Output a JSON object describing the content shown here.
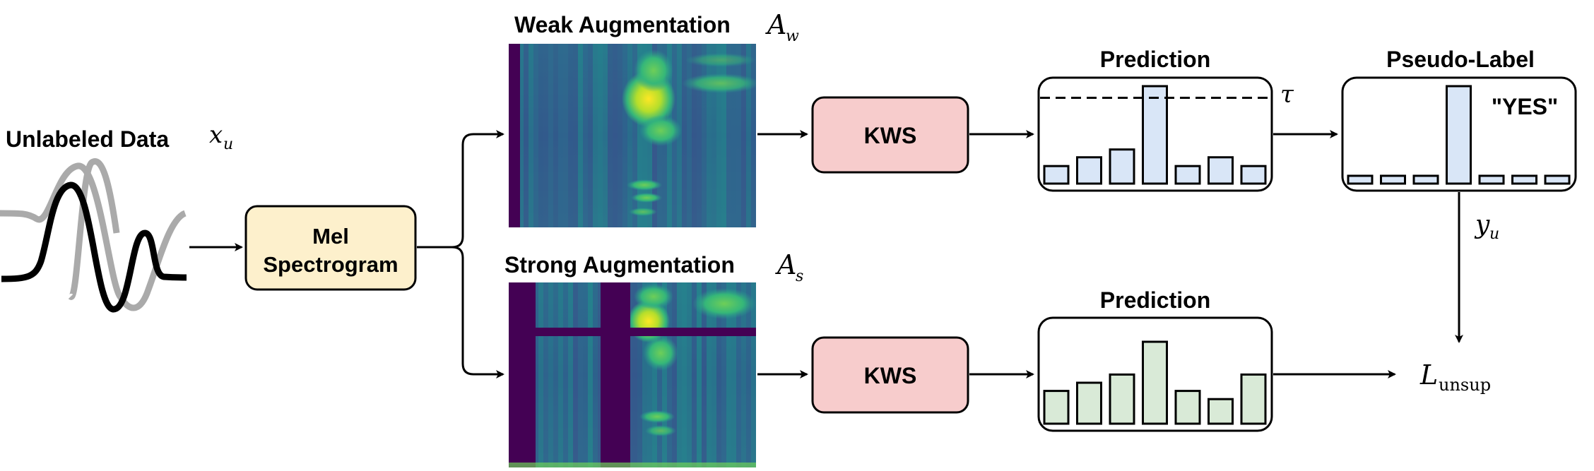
{
  "input": {
    "title": "Unlabeled Data",
    "symbol": "x",
    "symbol_sub": "u",
    "wave_colors": {
      "front": "#000000",
      "back": "#aaaaaa"
    }
  },
  "mel": {
    "label_line1": "Mel",
    "label_line2": "Spectrogram",
    "fill": "#fdf0cc"
  },
  "weak": {
    "title": "Weak Augmentation",
    "symbol": "A",
    "symbol_sub": "w"
  },
  "strong": {
    "title": "Strong Augmentation",
    "symbol": "A",
    "symbol_sub": "s"
  },
  "kws": {
    "label": "KWS",
    "fill": "#f7cccc"
  },
  "pred_top": {
    "title": "Prediction",
    "threshold_symbol": "τ",
    "bar_fill": "#d9e6f7",
    "values": [
      0.18,
      0.27,
      0.35,
      1.0,
      0.18,
      0.27,
      0.18
    ],
    "threshold": 0.88
  },
  "pseudo": {
    "title": "Pseudo-Label",
    "label": "\"YES\"",
    "symbol": "y",
    "symbol_sub": "u",
    "bar_fill": "#d9e6f7",
    "values": [
      0.08,
      0.08,
      0.08,
      1.0,
      0.08,
      0.08,
      0.08
    ]
  },
  "pred_bottom": {
    "title": "Prediction",
    "bar_fill": "#d9ead7",
    "values": [
      0.4,
      0.5,
      0.6,
      1.0,
      0.4,
      0.3,
      0.6
    ]
  },
  "loss": {
    "symbol": "L",
    "symbol_sub": "unsup"
  },
  "colors": {
    "spec_dark": "#440154",
    "spec_mid": "#2a788e",
    "spec_green": "#35b779",
    "spec_yellow": "#fde725"
  }
}
